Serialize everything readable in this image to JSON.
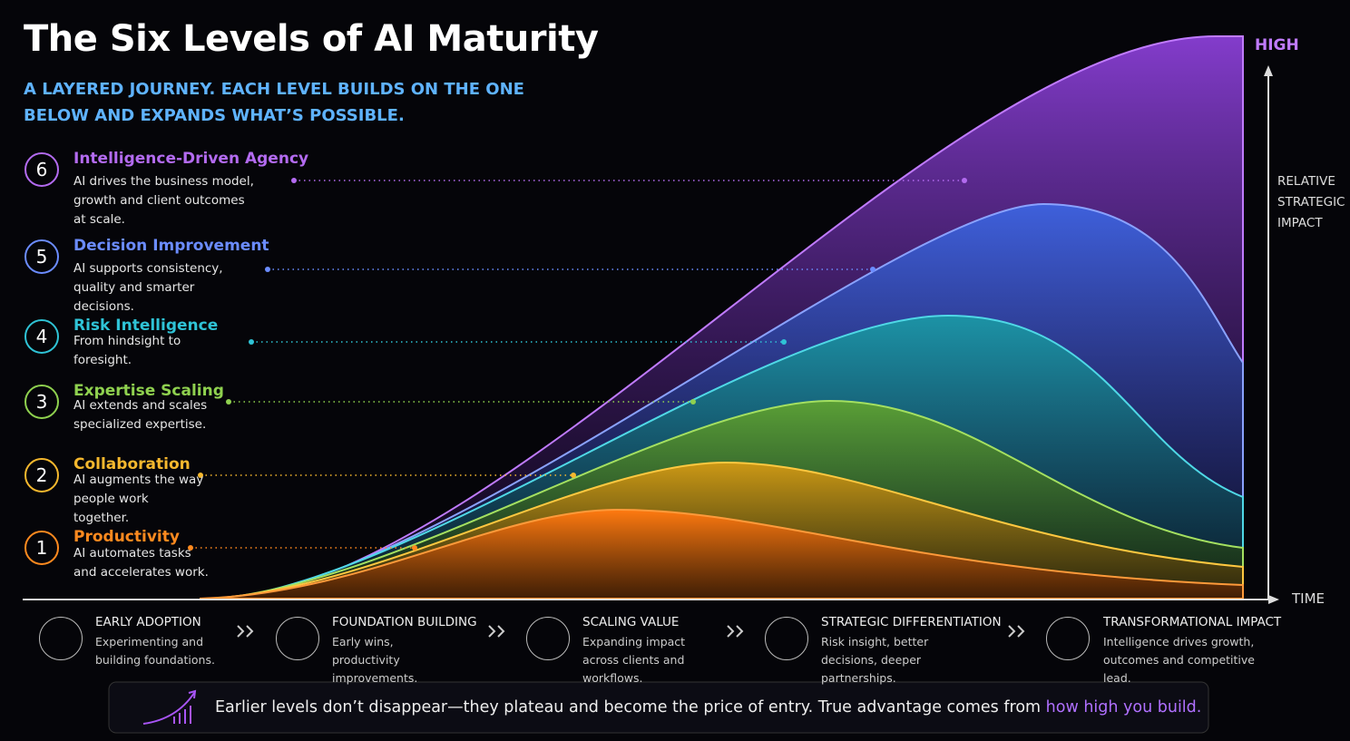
{
  "header": {
    "title": "The Six Levels of AI Maturity",
    "subtitle": "A LAYERED JOURNEY. EACH LEVEL BUILDS ON THE ONE BELOW AND EXPANDS WHAT’S POSSIBLE."
  },
  "levels": [
    {
      "number": 6,
      "title": "Intelligence-Driven Agency",
      "description": "AI drives the business model, growth and client outcomes at scale."
    },
    {
      "number": 5,
      "title": "Decision Improvement",
      "description": "AI supports consistency, quality and smarter decisions."
    },
    {
      "number": 4,
      "title": "Risk Intelligence",
      "description": "From hindsight to foresight."
    },
    {
      "number": 3,
      "title": "Expertise Scaling",
      "description": "AI extends and scales specialized expertise."
    },
    {
      "number": 2,
      "title": "Collaboration",
      "description": "AI augments the way people work together."
    },
    {
      "number": 1,
      "title": "Productivity",
      "description": "AI automates tasks and accelerates work."
    }
  ],
  "axes": {
    "y_top": "HIGH",
    "y_label": "RELATIVE STRATEGIC IMPACT",
    "x_label": "TIME"
  },
  "stages": [
    {
      "title": "EARLY ADOPTION",
      "description": "Experimenting and building foundations."
    },
    {
      "title": "FOUNDATION BUILDING",
      "description": "Early wins, productivity improvements."
    },
    {
      "title": "SCALING VALUE",
      "description": "Expanding impact across clients and workflows."
    },
    {
      "title": "STRATEGIC DIFFERENTIATION",
      "description": "Risk insight, better decisions, deeper partnerships."
    },
    {
      "title": "TRANSFORMATIONAL IMPACT",
      "description": "Intelligence drives growth, outcomes and competitive lead."
    }
  ],
  "footer": {
    "text": "Earlier levels don’t disappear—they plateau and become the price of entry. True advantage comes from ",
    "highlight": "how high you build."
  }
}
